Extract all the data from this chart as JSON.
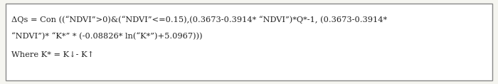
{
  "line1": "ΔQs = Con ((“NDVI”>0)&(“NDVI”<=0.15),(0.3673-0.3914* “NDVI”)*Q*-1, (0.3673-0.3914*",
  "line2": "“NDVI”)* “K*” * (-0.08826* ln(“K*”)+5.0967)))",
  "line3": "Where K* = K↓- K↑",
  "bg_color": "#f5f5f0",
  "box_color": "#ffffff",
  "border_color": "#888888",
  "text_color": "#222222",
  "font_size": 8.2,
  "font_family": "serif"
}
